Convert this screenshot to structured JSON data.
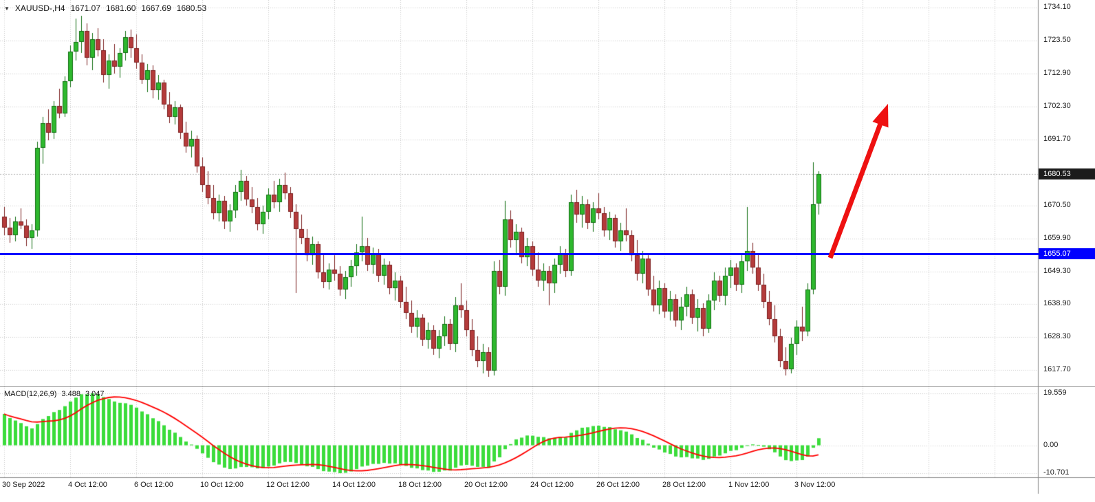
{
  "colors": {
    "background": "#ffffff",
    "grid": "#c9c9c9",
    "separator": "#8a8a8a",
    "axis_text": "#1a1a1a",
    "bull": "#2eb82e",
    "bull_border": "#116e11",
    "bear": "#b43b3b",
    "bear_border": "#7c1f1f",
    "histogram": "#3bdc3b",
    "signal_line": "#ff0000",
    "support_line": "#0000ff",
    "last_price_line": "#b3b3b3",
    "arrow": "#ee1111",
    "current_price_badge_bg": "#1c1c1c",
    "current_price_badge_text": "#ffffff",
    "hline_badge_bg": "#0000ff",
    "hline_badge_text": "#ffffff"
  },
  "info_bar": {
    "dropdown_icon": "▼",
    "symbol_timeframe": "XAUUSD-,H4",
    "open": "1671.07",
    "high": "1681.60",
    "low": "1667.69",
    "close": "1680.53"
  },
  "price_axis": {
    "labels": [
      "1734.10",
      "1723.50",
      "1712.90",
      "1702.30",
      "1691.70",
      "1670.50",
      "1659.90",
      "1649.30",
      "1638.90",
      "1628.30",
      "1617.70"
    ],
    "current_price_label": "1680.53",
    "hline_label": "1655.07"
  },
  "time_axis": {
    "labels": [
      "30 Sep 2022",
      "4 Oct 12:00",
      "6 Oct 12:00",
      "10 Oct 12:00",
      "12 Oct 12:00",
      "14 Oct 12:00",
      "18 Oct 12:00",
      "20 Oct 12:00",
      "24 Oct 12:00",
      "26 Oct 12:00",
      "28 Oct 12:00",
      "1 Nov 12:00",
      "3 Nov 12:00"
    ]
  },
  "macd_panel": {
    "label": "MACD(12,26,9)",
    "macd_value": "3.488",
    "signal_value": "3.047",
    "scale_labels": [
      "19.559",
      "0.00",
      "-10.701"
    ]
  },
  "chart_data": {
    "type": "candlestick",
    "symbol": "XAUUSD",
    "timeframe": "H4",
    "title": "XAUUSD-,H4",
    "price_axis_ticks": [
      1734.1,
      1723.5,
      1712.9,
      1702.3,
      1691.7,
      1670.5,
      1659.9,
      1649.3,
      1638.9,
      1628.3,
      1617.7
    ],
    "price_range_visible": [
      1612.6,
      1736.5
    ],
    "support_line_price": 1655.07,
    "last_price": 1680.53,
    "current_bar": {
      "open": 1671.07,
      "high": 1681.6,
      "low": 1667.69,
      "close": 1680.53
    },
    "time_tick_indices": [
      0,
      12,
      24,
      36,
      48,
      60,
      72,
      84,
      96,
      108,
      120,
      132,
      144
    ],
    "future_tick_indices": [
      156,
      168,
      180
    ],
    "grid": "dotted",
    "ohlc": [
      [
        1667,
        1670,
        1661,
        1663.5
      ],
      [
        1663.5,
        1666.5,
        1658.5,
        1661
      ],
      [
        1661,
        1667,
        1659,
        1665.5
      ],
      [
        1665.5,
        1669.5,
        1663,
        1664
      ],
      [
        1664,
        1666,
        1657.5,
        1660
      ],
      [
        1660,
        1664.5,
        1656.5,
        1662.5
      ],
      [
        1662.5,
        1691,
        1660.5,
        1689
      ],
      [
        1689,
        1699,
        1684,
        1697
      ],
      [
        1697,
        1701.5,
        1691.5,
        1694
      ],
      [
        1694,
        1704,
        1692,
        1702.5
      ],
      [
        1702.5,
        1708,
        1698.5,
        1700
      ],
      [
        1700,
        1712,
        1699,
        1710.5
      ],
      [
        1710.5,
        1722,
        1708.5,
        1720
      ],
      [
        1720,
        1730.5,
        1717,
        1723
      ],
      [
        1723,
        1731.5,
        1719.5,
        1726.5
      ],
      [
        1726.5,
        1729,
        1715.5,
        1718
      ],
      [
        1718,
        1726,
        1714,
        1724
      ],
      [
        1724,
        1727.5,
        1718.5,
        1720.5
      ],
      [
        1720.5,
        1724,
        1710,
        1712.5
      ],
      [
        1712.5,
        1719,
        1708,
        1717
      ],
      [
        1717,
        1722.5,
        1713,
        1715
      ],
      [
        1715,
        1721,
        1711.5,
        1719.5
      ],
      [
        1719.5,
        1726.5,
        1717,
        1724.5
      ],
      [
        1724.5,
        1727,
        1718,
        1721
      ],
      [
        1721,
        1725.5,
        1714.5,
        1716.5
      ],
      [
        1716.5,
        1719,
        1709.5,
        1711
      ],
      [
        1711,
        1716,
        1707,
        1714
      ],
      [
        1714,
        1715.5,
        1705,
        1707.5
      ],
      [
        1707.5,
        1712.5,
        1704.5,
        1710
      ],
      [
        1710,
        1711,
        1701.5,
        1703
      ],
      [
        1703,
        1707,
        1697,
        1699
      ],
      [
        1699,
        1704,
        1696.5,
        1702
      ],
      [
        1702,
        1703,
        1692,
        1694
      ],
      [
        1694,
        1697.5,
        1687.5,
        1689.5
      ],
      [
        1689.5,
        1694.5,
        1686,
        1692
      ],
      [
        1692,
        1693,
        1681,
        1683
      ],
      [
        1683,
        1686,
        1675,
        1677
      ],
      [
        1677,
        1681.5,
        1671,
        1673
      ],
      [
        1673,
        1677,
        1666,
        1668
      ],
      [
        1668,
        1674,
        1665.5,
        1672
      ],
      [
        1672,
        1673.5,
        1663,
        1665.5
      ],
      [
        1665.5,
        1671,
        1662,
        1669
      ],
      [
        1669,
        1677,
        1666.5,
        1675
      ],
      [
        1675,
        1682,
        1672,
        1678.5
      ],
      [
        1678.5,
        1680,
        1670.5,
        1672.5
      ],
      [
        1672.5,
        1676.5,
        1668,
        1670
      ],
      [
        1670,
        1673,
        1662.5,
        1664.5
      ],
      [
        1664.5,
        1670.5,
        1661.5,
        1668.5
      ],
      [
        1668.5,
        1676,
        1666,
        1674
      ],
      [
        1674,
        1678.5,
        1669.5,
        1671.5
      ],
      [
        1671.5,
        1679,
        1668.5,
        1677
      ],
      [
        1677,
        1681,
        1672.5,
        1674.5
      ],
      [
        1674.5,
        1676.5,
        1666.5,
        1668.5
      ],
      [
        1668.5,
        1671,
        1642.5,
        1663
      ],
      [
        1663,
        1667.5,
        1658,
        1660
      ],
      [
        1660,
        1663,
        1652.5,
        1654.5
      ],
      [
        1654.5,
        1660.5,
        1651.5,
        1658
      ],
      [
        1658,
        1659,
        1647,
        1649
      ],
      [
        1649,
        1655,
        1644,
        1646
      ],
      [
        1646,
        1652,
        1643.5,
        1650
      ],
      [
        1650,
        1654.5,
        1646.5,
        1648.5
      ],
      [
        1648.5,
        1651,
        1641.5,
        1643.5
      ],
      [
        1643.5,
        1649.5,
        1640.5,
        1647.5
      ],
      [
        1647.5,
        1653,
        1644.5,
        1651
      ],
      [
        1651,
        1658,
        1648,
        1655.5
      ],
      [
        1655.5,
        1667,
        1652.5,
        1657.5
      ],
      [
        1657.5,
        1660,
        1649.5,
        1651.5
      ],
      [
        1651.5,
        1657,
        1648.5,
        1655
      ],
      [
        1655,
        1656.5,
        1646,
        1648
      ],
      [
        1648,
        1653.5,
        1645,
        1651.5
      ],
      [
        1651.5,
        1652.5,
        1642,
        1644
      ],
      [
        1644,
        1649,
        1640,
        1646.5
      ],
      [
        1646.5,
        1648,
        1637.5,
        1639.5
      ],
      [
        1639.5,
        1644.5,
        1634,
        1636
      ],
      [
        1636,
        1640,
        1629.5,
        1631.5
      ],
      [
        1631.5,
        1637,
        1628,
        1634.5
      ],
      [
        1634.5,
        1635.5,
        1625.5,
        1627.5
      ],
      [
        1627.5,
        1633,
        1624.5,
        1630.5
      ],
      [
        1630.5,
        1632,
        1622.5,
        1624.5
      ],
      [
        1624.5,
        1630.5,
        1621.5,
        1628.5
      ],
      [
        1628.5,
        1635,
        1625.5,
        1632.5
      ],
      [
        1632.5,
        1634,
        1624,
        1626
      ],
      [
        1626,
        1641,
        1623.5,
        1638.5
      ],
      [
        1638.5,
        1645.5,
        1634.5,
        1637
      ],
      [
        1637,
        1640,
        1628.5,
        1630.5
      ],
      [
        1630.5,
        1634,
        1622,
        1624
      ],
      [
        1624,
        1628.5,
        1618.5,
        1620.5
      ],
      [
        1620.5,
        1626,
        1616.5,
        1623.5
      ],
      [
        1623.5,
        1625,
        1615.5,
        1617.5
      ],
      [
        1617.5,
        1652.5,
        1616,
        1649.5
      ],
      [
        1649.5,
        1653,
        1642,
        1644.5
      ],
      [
        1644.5,
        1672,
        1641.5,
        1666
      ],
      [
        1666,
        1669,
        1657,
        1659.5
      ],
      [
        1659.5,
        1664.5,
        1654.5,
        1662
      ],
      [
        1662,
        1663.5,
        1652,
        1654
      ],
      [
        1654,
        1660,
        1651,
        1657.5
      ],
      [
        1657.5,
        1659,
        1648,
        1650
      ],
      [
        1650,
        1655.5,
        1644.5,
        1646.5
      ],
      [
        1646.5,
        1652,
        1643,
        1649.5
      ],
      [
        1649.5,
        1651,
        1638.5,
        1645.5
      ],
      [
        1645.5,
        1653.5,
        1642.5,
        1651.5
      ],
      [
        1651.5,
        1657.5,
        1648.5,
        1655
      ],
      [
        1655,
        1656.5,
        1647.5,
        1649.5
      ],
      [
        1649.5,
        1674,
        1648,
        1671.5
      ],
      [
        1671.5,
        1675.5,
        1665,
        1667.5
      ],
      [
        1667.5,
        1673.5,
        1663.5,
        1671
      ],
      [
        1671,
        1672.5,
        1663,
        1665
      ],
      [
        1665,
        1671.5,
        1662,
        1669.5
      ],
      [
        1669.5,
        1674.5,
        1666,
        1668
      ],
      [
        1668,
        1670,
        1660.5,
        1662.5
      ],
      [
        1662.5,
        1668.5,
        1659.5,
        1666.5
      ],
      [
        1666.5,
        1667.5,
        1657,
        1659
      ],
      [
        1659,
        1665,
        1656,
        1662.5
      ],
      [
        1662.5,
        1669.5,
        1659,
        1661
      ],
      [
        1661,
        1662.5,
        1652.5,
        1654.5
      ],
      [
        1654.5,
        1659.5,
        1646.5,
        1648.5
      ],
      [
        1648.5,
        1656,
        1645.5,
        1653.5
      ],
      [
        1653.5,
        1654.5,
        1641.5,
        1643.5
      ],
      [
        1643.5,
        1648,
        1636.5,
        1638.5
      ],
      [
        1638.5,
        1646.5,
        1635.5,
        1644
      ],
      [
        1644,
        1645.5,
        1634.5,
        1636.5
      ],
      [
        1636.5,
        1643,
        1633.5,
        1640.5
      ],
      [
        1640.5,
        1642,
        1631.5,
        1633.5
      ],
      [
        1633.5,
        1641,
        1630.5,
        1638
      ],
      [
        1638,
        1644.5,
        1635,
        1642
      ],
      [
        1642,
        1643.5,
        1632.5,
        1634.5
      ],
      [
        1634.5,
        1640.5,
        1630,
        1637.5
      ],
      [
        1637.5,
        1639,
        1628.5,
        1631
      ],
      [
        1631,
        1642,
        1629.5,
        1640
      ],
      [
        1640,
        1649,
        1637,
        1646.5
      ],
      [
        1646.5,
        1648,
        1639.5,
        1641.5
      ],
      [
        1641.5,
        1650.5,
        1638.5,
        1648
      ],
      [
        1648,
        1653,
        1644,
        1650.5
      ],
      [
        1650.5,
        1652,
        1643,
        1645
      ],
      [
        1645,
        1654.5,
        1642.5,
        1652.5
      ],
      [
        1652.5,
        1670,
        1649.5,
        1656
      ],
      [
        1656,
        1658.5,
        1648.5,
        1650.5
      ],
      [
        1650.5,
        1655,
        1643,
        1645
      ],
      [
        1645,
        1648.5,
        1637.5,
        1639.5
      ],
      [
        1639.5,
        1643,
        1632,
        1634
      ],
      [
        1634,
        1638.5,
        1626.5,
        1628.5
      ],
      [
        1628.5,
        1631,
        1618.5,
        1620.5
      ],
      [
        1620.5,
        1625,
        1616,
        1618
      ],
      [
        1618,
        1628,
        1616.5,
        1626
      ],
      [
        1626,
        1633.5,
        1622.5,
        1631.5
      ],
      [
        1631.5,
        1638,
        1627,
        1630
      ],
      [
        1630,
        1645.5,
        1628.5,
        1643.5
      ],
      [
        1643.5,
        1684.5,
        1642,
        1671
      ],
      [
        1671.07,
        1681.6,
        1667.69,
        1680.53
      ]
    ],
    "macd": {
      "params": [
        12,
        26,
        9
      ],
      "last_macd": 3.488,
      "last_signal": 3.047,
      "scale": [
        19.559,
        0.0,
        -10.701
      ]
    }
  }
}
